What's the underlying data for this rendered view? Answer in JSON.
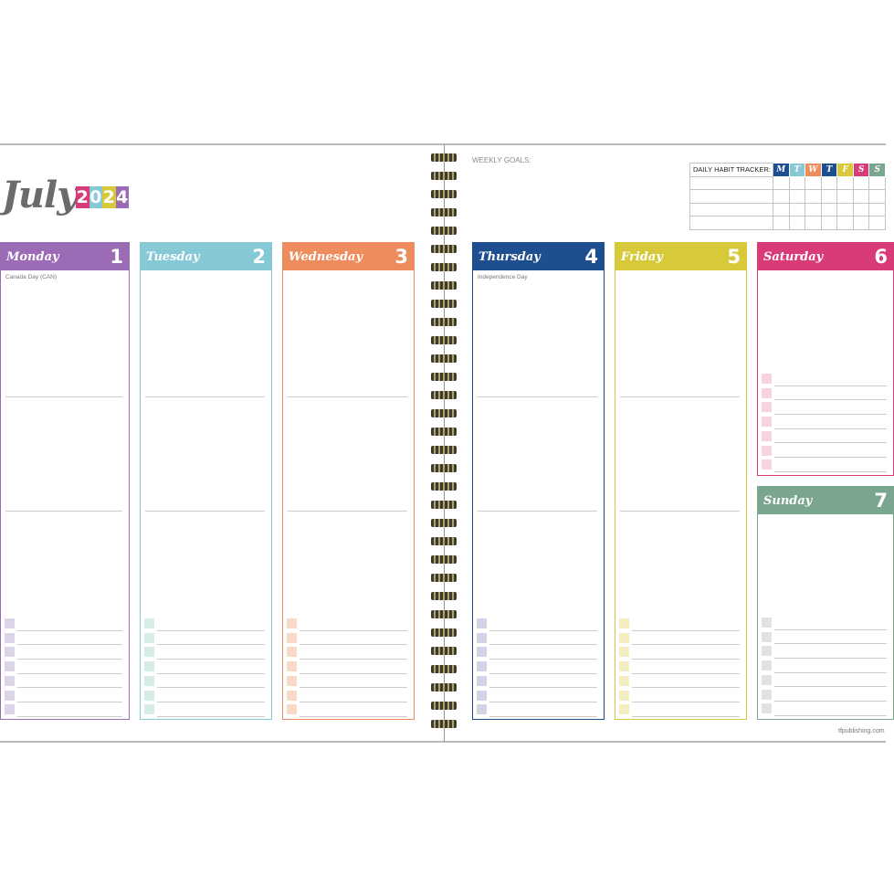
{
  "month": "July",
  "year_digits": [
    "2",
    "0",
    "2",
    "4"
  ],
  "year_colors": [
    "#d93b78",
    "#86c9d6",
    "#d7c93a",
    "#9b6bb5"
  ],
  "weekly_goals_label": "WEEKLY GOALS:",
  "habit_tracker": {
    "label": "DAILY HABIT TRACKER:",
    "days": [
      "M",
      "T",
      "W",
      "T",
      "F",
      "S",
      "S"
    ],
    "colors": [
      "#1d4e8f",
      "#86c9d6",
      "#ef8c5e",
      "#1d4e8f",
      "#d7c93a",
      "#d93b78",
      "#7aa58e"
    ],
    "rows": 4
  },
  "days": [
    {
      "name": "Monday",
      "number": "1",
      "note": "Canada Day (CAN)",
      "color": "#9b6bb5",
      "tint": "#dcd4e8"
    },
    {
      "name": "Tuesday",
      "number": "2",
      "note": "",
      "color": "#86c9d6",
      "tint": "#d6ece6"
    },
    {
      "name": "Wednesday",
      "number": "3",
      "note": "",
      "color": "#ef8c5e",
      "tint": "#fbd9c7"
    },
    {
      "name": "Thursday",
      "number": "4",
      "note": "Independence Day",
      "color": "#1d4e8f",
      "tint": "#d3d3e6"
    },
    {
      "name": "Friday",
      "number": "5",
      "note": "",
      "color": "#d7c93a",
      "tint": "#f3edc0"
    },
    {
      "name": "Saturday",
      "number": "6",
      "note": "",
      "color": "#d93b78",
      "tint": "#f6d3df"
    },
    {
      "name": "Sunday",
      "number": "7",
      "note": "",
      "color": "#7aa58e",
      "tint": "#e0e3e0"
    }
  ],
  "footer": "tfpublishing.com"
}
